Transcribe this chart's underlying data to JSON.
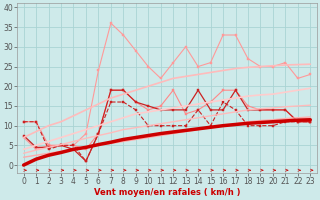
{
  "xlabel": "Vent moyen/en rafales ( km/h )",
  "bg_color": "#ceeaea",
  "grid_color": "#aad4d4",
  "x_vals": [
    0,
    1,
    2,
    3,
    4,
    5,
    6,
    7,
    8,
    9,
    10,
    11,
    12,
    13,
    14,
    15,
    16,
    17,
    18,
    19,
    20,
    21,
    22,
    23
  ],
  "ylim": [
    -2,
    41
  ],
  "xlim": [
    -0.5,
    23.5
  ],
  "series": [
    {
      "y": [
        7,
        4,
        5,
        5,
        5,
        8,
        24,
        36,
        33,
        29,
        25,
        22,
        26,
        30,
        25,
        26,
        33,
        33,
        27,
        25,
        25,
        26,
        22,
        23
      ],
      "color": "#ff9999",
      "lw": 0.8,
      "marker": "s",
      "ms": 2.0,
      "ls": "-"
    },
    {
      "y": [
        11,
        11,
        5,
        5,
        5,
        4,
        8,
        19,
        19,
        16,
        14,
        15,
        19,
        13,
        14,
        16,
        19,
        19,
        15,
        14,
        14,
        14,
        11,
        11
      ],
      "color": "#ff8888",
      "lw": 0.8,
      "marker": "s",
      "ms": 2.0,
      "ls": "-"
    },
    {
      "y": [
        7.5,
        4.5,
        4.5,
        5,
        4,
        1,
        8,
        19,
        19,
        16,
        15,
        14,
        14,
        14,
        19,
        14,
        14,
        19,
        14,
        14,
        14,
        14,
        11,
        11
      ],
      "color": "#cc2222",
      "lw": 0.9,
      "marker": "s",
      "ms": 2.0,
      "ls": "-"
    },
    {
      "y": [
        11,
        11,
        4,
        5,
        5,
        1,
        8,
        16,
        16,
        14,
        10,
        10,
        10,
        10,
        14,
        10,
        16,
        14,
        10,
        10,
        10,
        11,
        11,
        11
      ],
      "color": "#cc2222",
      "lw": 0.8,
      "marker": "s",
      "ms": 2.0,
      "ls": "--"
    },
    {
      "y": [
        7,
        8.5,
        10,
        11,
        12.5,
        14,
        15.5,
        17,
        18,
        19,
        20,
        21,
        22,
        22.5,
        23,
        23.5,
        24,
        24.5,
        24.8,
        25,
        25.2,
        25.4,
        25.5,
        25.6
      ],
      "color": "#ffbbbb",
      "lw": 1.2,
      "marker": null,
      "ms": 0,
      "ls": "-"
    },
    {
      "y": [
        4,
        5,
        6,
        7,
        8,
        9,
        10,
        11,
        12,
        13,
        13.5,
        14,
        14.5,
        15,
        15.5,
        16,
        16.5,
        17,
        17.5,
        17.8,
        18,
        18.5,
        19,
        19.5
      ],
      "color": "#ffcccc",
      "lw": 1.2,
      "marker": null,
      "ms": 0,
      "ls": "-"
    },
    {
      "y": [
        3,
        3.8,
        4.5,
        5.2,
        6,
        6.8,
        7.5,
        8.2,
        9,
        9.5,
        10,
        10.5,
        11,
        11.5,
        12,
        12.5,
        13,
        13.5,
        14,
        14.3,
        14.5,
        14.8,
        15,
        15.2
      ],
      "color": "#ffbbbb",
      "lw": 1.0,
      "marker": null,
      "ms": 0,
      "ls": "-"
    },
    {
      "y": [
        2,
        2.5,
        3,
        3.5,
        4,
        4.5,
        5,
        5.5,
        6,
        6.5,
        7,
        7.5,
        8,
        8.5,
        9,
        9.5,
        10,
        10.5,
        11,
        11.3,
        11.5,
        11.8,
        12,
        12.2
      ],
      "color": "#ffaaaa",
      "lw": 1.0,
      "marker": null,
      "ms": 0,
      "ls": "-"
    },
    {
      "y": [
        0,
        1.5,
        2.5,
        3.2,
        4,
        4.5,
        5.2,
        5.8,
        6.5,
        7.0,
        7.5,
        8.0,
        8.4,
        8.8,
        9.2,
        9.6,
        10.0,
        10.3,
        10.6,
        10.8,
        11.0,
        11.2,
        11.4,
        11.5
      ],
      "color": "#cc0000",
      "lw": 2.5,
      "marker": null,
      "ms": 0,
      "ls": "-"
    }
  ],
  "arrow_color": "#cc0000",
  "tick_fontsize": 5.5,
  "tick_color": "#555555",
  "yticks": [
    0,
    5,
    10,
    15,
    20,
    25,
    30,
    35,
    40
  ]
}
